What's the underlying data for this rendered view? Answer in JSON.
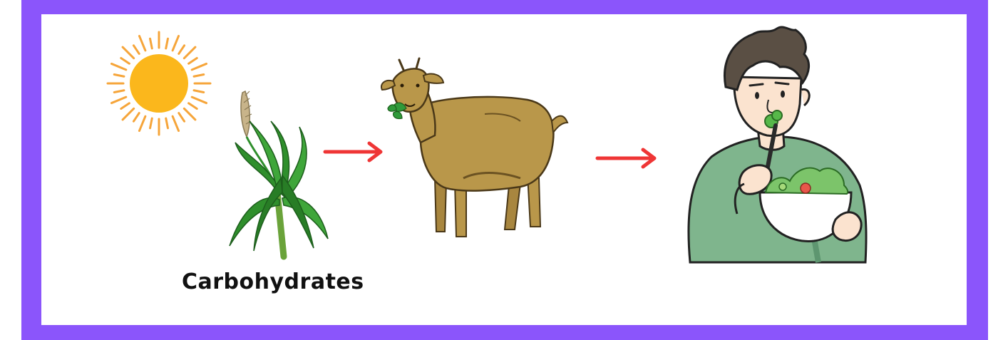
{
  "diagram": {
    "caption": "Carbohydrates",
    "nodes": [
      {
        "id": "sun",
        "icon": "sun-icon"
      },
      {
        "id": "grass",
        "icon": "grass-plant-icon"
      },
      {
        "id": "goat",
        "icon": "goat-icon"
      },
      {
        "id": "person",
        "icon": "person-eating-salad-icon"
      }
    ],
    "arrows": [
      {
        "from": "grass",
        "to": "goat"
      },
      {
        "from": "goat",
        "to": "person"
      }
    ]
  },
  "colors": {
    "frame": "#8b55fb",
    "arrow": "#ef3535",
    "sun": "#fbb71c",
    "sun_rays": "#f6a53a",
    "grass": "#2f8f2c",
    "goat": "#b9974a",
    "shirt": "#7fb58d"
  }
}
